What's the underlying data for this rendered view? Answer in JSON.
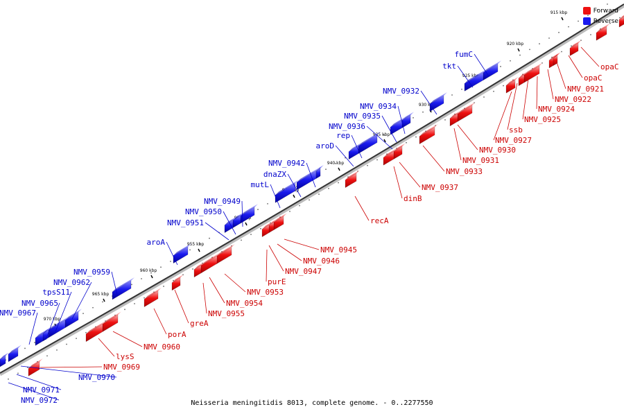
{
  "colors": {
    "forward": "#ee1111",
    "reverse": "#1a1aee",
    "forward_label": "#cc0000",
    "reverse_label": "#0000cc"
  },
  "legend": {
    "forward": "Forward",
    "reverse": "Reverse"
  },
  "caption": "Neisseria meningitidis 8013, complete genome. - 0..2277550",
  "ticks": [
    "915 kbp",
    "920 kbp",
    "925 kbp",
    "930 kbp",
    "935 kbp",
    "940 kbp",
    "945 kbp",
    "950 kbp",
    "955 kbp",
    "960 kbp",
    "965 kbp",
    "970 kbp"
  ],
  "reverse_genes": [
    "fumC",
    "tkt",
    "NMV_0932",
    "NMV_0934",
    "NMV_0935",
    "NMV_0936",
    "rep",
    "aroD",
    "NMV_0942",
    "dnaZX",
    "mutL",
    "NMV_0949",
    "NMV_0950",
    "NMV_0951",
    "aroA",
    "NMV_0959",
    "NMV_0962",
    "tpsS11",
    "NMV_0965",
    "NMV_0967",
    "NMV_0970",
    "NMV_0971",
    "NMV_0972"
  ],
  "forward_genes": [
    "opaC",
    "opaC",
    "NMV_0921",
    "NMV_0922",
    "NMV_0924",
    "NMV_0925",
    "ssb",
    "NMV_0927",
    "NMV_0930",
    "NMV_0931",
    "NMV_0933",
    "NMV_0937",
    "dinB",
    "recA",
    "NMV_0945",
    "NMV_0946",
    "NMV_0947",
    "purE",
    "NMV_0953",
    "NMV_0954",
    "NMV_0955",
    "greA",
    "porA",
    "NMV_0960",
    "lysS",
    "NMV_0969"
  ]
}
